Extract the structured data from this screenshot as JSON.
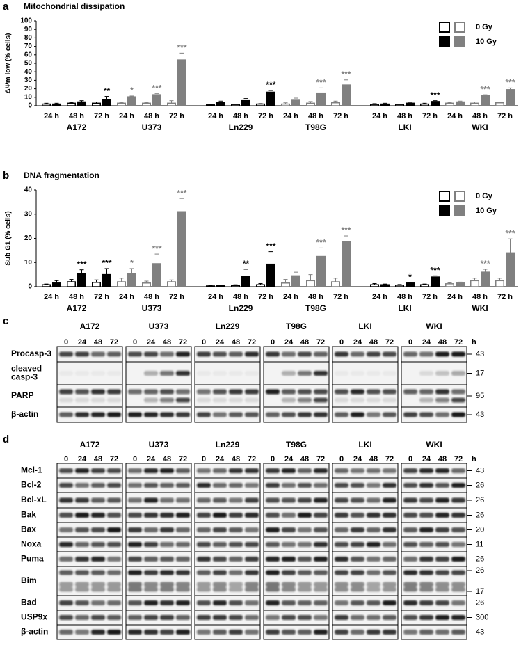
{
  "chart_data": [
    {
      "type": "bar",
      "panel": "a",
      "title": "Mitochondrial dissipation",
      "y_label": "ΔΨm low (% cells)",
      "ylim": [
        0,
        100
      ],
      "yticks": [
        0,
        10,
        20,
        30,
        40,
        50,
        60,
        70,
        80,
        90,
        100
      ],
      "categories": [
        "24 h",
        "48 h",
        "72 h",
        "24 h",
        "48 h",
        "72 h",
        "24 h",
        "48 h",
        "72 h",
        "24 h",
        "48 h",
        "72 h",
        "24 h",
        "48 h",
        "72 h",
        "24 h",
        "48 h",
        "72 h"
      ],
      "groups": [
        "A172",
        "U373",
        "Ln229",
        "T98G",
        "LKI",
        "WKI"
      ],
      "group_colors": [
        "#000000",
        "#808080",
        "#000000",
        "#808080",
        "#000000",
        "#808080"
      ],
      "series": [
        {
          "name": "0 Gy",
          "color": "#ffffff",
          "values": [
            2,
            3,
            3,
            3,
            3,
            3,
            1,
            1.5,
            2,
            2,
            3,
            3.5,
            1.5,
            1.5,
            2,
            3,
            3,
            3.5
          ],
          "errors": [
            1,
            1,
            1.5,
            1,
            1,
            3,
            0.5,
            0.5,
            0.5,
            1.5,
            2,
            2,
            1,
            0.5,
            1,
            1,
            1.5,
            1
          ]
        },
        {
          "name": "10 Gy",
          "values": [
            2,
            4.5,
            7,
            10.5,
            13,
            54,
            4,
            6,
            16,
            6.5,
            15,
            24.5,
            2,
            3,
            5,
            4.5,
            12,
            19
          ],
          "errors": [
            1,
            1.5,
            4,
            1,
            1.5,
            8,
            1.5,
            2.5,
            2,
            2.5,
            6,
            6,
            1,
            0.5,
            1,
            1,
            1,
            2
          ]
        }
      ],
      "significance": [
        null,
        null,
        "**",
        "*",
        "***",
        "***",
        null,
        null,
        "***",
        null,
        "***",
        "***",
        null,
        null,
        "***",
        null,
        "***",
        "***"
      ],
      "legend": "upper right"
    },
    {
      "type": "bar",
      "panel": "b",
      "title": "DNA  fragmentation",
      "y_label": "Sub G1 (% cells)",
      "ylim": [
        0,
        40
      ],
      "yticks": [
        0,
        10,
        20,
        30,
        40
      ],
      "categories": [
        "24 h",
        "48 h",
        "72 h",
        "24 h",
        "48 h",
        "72 h",
        "24 h",
        "48 h",
        "72 h",
        "24 h",
        "48 h",
        "72 h",
        "24 h",
        "48 h",
        "72 h",
        "24 h",
        "48 h",
        "72 h"
      ],
      "groups": [
        "A172",
        "U373",
        "Ln229",
        "T98G",
        "LKI",
        "WKI"
      ],
      "group_colors": [
        "#000000",
        "#808080",
        "#000000",
        "#808080",
        "#000000",
        "#808080"
      ],
      "series": [
        {
          "name": "0 Gy",
          "color": "#ffffff",
          "values": [
            0.8,
            2,
            1.8,
            2,
            1.5,
            2,
            0.3,
            0.5,
            0.8,
            1.5,
            2.5,
            2,
            0.8,
            0.6,
            0.8,
            1.2,
            2.5,
            2.5
          ],
          "errors": [
            0.3,
            1,
            1,
            1.5,
            0.8,
            0.8,
            0.2,
            0.3,
            0.5,
            1.5,
            2.5,
            1.5,
            0.5,
            0.3,
            0.3,
            0.4,
            1,
            1
          ]
        },
        {
          "name": "10 Gy",
          "values": [
            1.5,
            5.5,
            5,
            5.5,
            9.5,
            31,
            0.5,
            4.2,
            9.3,
            4.5,
            12.5,
            18.5,
            0.8,
            1.5,
            4,
            1.5,
            6,
            14
          ],
          "errors": [
            1,
            1.5,
            2.5,
            2,
            4,
            5.5,
            0.2,
            3,
            5.2,
            1.5,
            3.5,
            2.5,
            0.3,
            0.3,
            0.5,
            0.4,
            1.2,
            5.8
          ]
        }
      ],
      "significance": [
        null,
        "***",
        "***",
        "*",
        "***",
        "***",
        null,
        "**",
        "***",
        null,
        "***",
        "***",
        null,
        "*",
        "***",
        null,
        "***",
        "***"
      ],
      "legend": "upper right"
    }
  ],
  "blots": [
    {
      "panel": "c",
      "cell_lines": [
        "A172",
        "U373",
        "Ln229",
        "T98G",
        "LKI",
        "WKI"
      ],
      "times": [
        "0",
        "24",
        "48",
        "72"
      ],
      "unit": "h",
      "rows": [
        {
          "label": "Procasp-3",
          "markers": [
            43
          ]
        },
        {
          "label": [
            "cleaved",
            "casp-3"
          ],
          "markers": [
            17
          ]
        },
        {
          "label": "PARP",
          "markers": [
            95
          ]
        },
        {
          "label": "β-actin",
          "markers": [
            43
          ]
        }
      ]
    },
    {
      "panel": "d",
      "cell_lines": [
        "A172",
        "U373",
        "Ln229",
        "T98G",
        "LKI",
        "WKI"
      ],
      "times": [
        "0",
        "24",
        "48",
        "72"
      ],
      "unit": "h",
      "rows": [
        {
          "label": "Mcl-1",
          "markers": [
            43
          ]
        },
        {
          "label": "Bcl-2",
          "markers": [
            26
          ]
        },
        {
          "label": "Bcl-xL",
          "markers": [
            26
          ]
        },
        {
          "label": "Bak",
          "markers": [
            26
          ]
        },
        {
          "label": "Bax",
          "markers": [
            20
          ]
        },
        {
          "label": "Noxa",
          "markers": [
            11
          ]
        },
        {
          "label": "Puma",
          "markers": [
            26
          ]
        },
        {
          "label": "Bim",
          "markers": [
            26,
            17
          ]
        },
        {
          "label": "Bad",
          "markers": [
            26
          ]
        },
        {
          "label": "USP9x",
          "markers": [
            300
          ]
        },
        {
          "label": "β-actin",
          "markers": [
            43
          ]
        }
      ]
    }
  ]
}
